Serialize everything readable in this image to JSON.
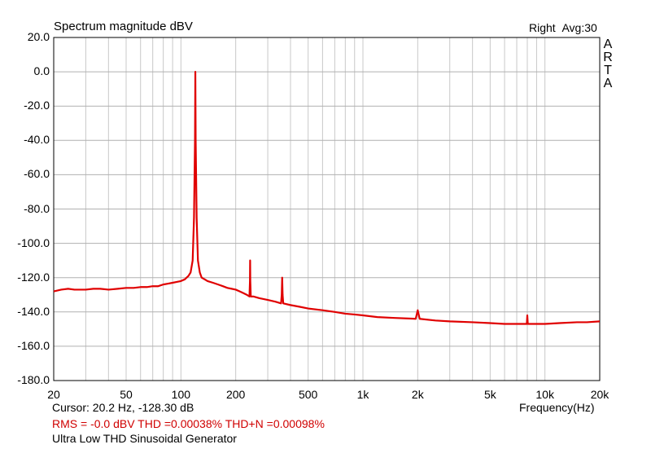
{
  "chart_data": {
    "type": "line",
    "title": "Spectrum magnitude dBV",
    "channel_label": "Right",
    "averages_label": "Avg:30",
    "brand_letters": [
      "A",
      "R",
      "T",
      "A"
    ],
    "xlabel": "Frequency(Hz)",
    "ylabel": "",
    "x_scale": "log",
    "xlim": [
      20,
      20000
    ],
    "ylim": [
      -180,
      20
    ],
    "grid": true,
    "x_ticks": [
      {
        "value": 20,
        "label": "20"
      },
      {
        "value": 50,
        "label": "50"
      },
      {
        "value": 100,
        "label": "100"
      },
      {
        "value": 200,
        "label": "200"
      },
      {
        "value": 500,
        "label": "500"
      },
      {
        "value": 1000,
        "label": "1k"
      },
      {
        "value": 2000,
        "label": "2k"
      },
      {
        "value": 5000,
        "label": "5k"
      },
      {
        "value": 10000,
        "label": "10k"
      },
      {
        "value": 20000,
        "label": "20k"
      }
    ],
    "y_ticks": [
      {
        "value": 20,
        "label": "20.0"
      },
      {
        "value": 0,
        "label": "0.0"
      },
      {
        "value": -20,
        "label": "-20.0"
      },
      {
        "value": -40,
        "label": "-40.0"
      },
      {
        "value": -60,
        "label": "-60.0"
      },
      {
        "value": -80,
        "label": "-80.0"
      },
      {
        "value": -100,
        "label": "-100.0"
      },
      {
        "value": -120,
        "label": "-120.0"
      },
      {
        "value": -140,
        "label": "-140.0"
      },
      {
        "value": -160,
        "label": "-160.0"
      },
      {
        "value": -180,
        "label": "-180.0"
      }
    ],
    "series": [
      {
        "color": "#e00000",
        "points": [
          [
            20,
            -128
          ],
          [
            22,
            -127
          ],
          [
            24,
            -126.5
          ],
          [
            26,
            -127
          ],
          [
            28,
            -127
          ],
          [
            30,
            -127
          ],
          [
            33,
            -126.5
          ],
          [
            36,
            -126.5
          ],
          [
            40,
            -127
          ],
          [
            45,
            -126.5
          ],
          [
            50,
            -126
          ],
          [
            55,
            -126
          ],
          [
            60,
            -125.5
          ],
          [
            65,
            -125.5
          ],
          [
            70,
            -125
          ],
          [
            75,
            -125
          ],
          [
            80,
            -124
          ],
          [
            85,
            -123.5
          ],
          [
            90,
            -123
          ],
          [
            95,
            -122.5
          ],
          [
            100,
            -122
          ],
          [
            105,
            -121
          ],
          [
            110,
            -119
          ],
          [
            113,
            -117
          ],
          [
            116,
            -110
          ],
          [
            118,
            -85
          ],
          [
            119.5,
            -40
          ],
          [
            120,
            0
          ],
          [
            120.5,
            -40
          ],
          [
            122,
            -85
          ],
          [
            124,
            -110
          ],
          [
            127,
            -117
          ],
          [
            130,
            -120
          ],
          [
            135,
            -121
          ],
          [
            140,
            -122
          ],
          [
            150,
            -123
          ],
          [
            160,
            -124
          ],
          [
            170,
            -125
          ],
          [
            180,
            -126
          ],
          [
            190,
            -126.5
          ],
          [
            200,
            -127
          ],
          [
            210,
            -128
          ],
          [
            220,
            -129
          ],
          [
            230,
            -130
          ],
          [
            238,
            -131
          ],
          [
            239.5,
            -122
          ],
          [
            240,
            -110
          ],
          [
            240.5,
            -122
          ],
          [
            242,
            -131
          ],
          [
            250,
            -131
          ],
          [
            270,
            -132
          ],
          [
            300,
            -133
          ],
          [
            330,
            -134
          ],
          [
            355,
            -135
          ],
          [
            358,
            -130
          ],
          [
            360,
            -120
          ],
          [
            362,
            -130
          ],
          [
            365,
            -135
          ],
          [
            400,
            -136
          ],
          [
            450,
            -137
          ],
          [
            500,
            -138
          ],
          [
            600,
            -139
          ],
          [
            700,
            -140
          ],
          [
            800,
            -141
          ],
          [
            900,
            -141.5
          ],
          [
            1000,
            -142
          ],
          [
            1200,
            -143
          ],
          [
            1500,
            -143.5
          ],
          [
            1950,
            -144
          ],
          [
            2000,
            -139
          ],
          [
            2050,
            -144
          ],
          [
            2500,
            -145
          ],
          [
            3000,
            -145.5
          ],
          [
            4000,
            -146
          ],
          [
            5000,
            -146.5
          ],
          [
            6000,
            -147
          ],
          [
            7000,
            -147
          ],
          [
            7950,
            -147
          ],
          [
            8000,
            -142
          ],
          [
            8050,
            -147
          ],
          [
            9000,
            -147
          ],
          [
            10000,
            -147
          ],
          [
            12000,
            -146.5
          ],
          [
            15000,
            -146
          ],
          [
            17000,
            -146
          ],
          [
            20000,
            -145.5
          ]
        ]
      }
    ]
  },
  "readouts": {
    "cursor": "Cursor:   20.2 Hz, -128.30 dB",
    "stats": "RMS =   -0.0 dBV   THD =0.00038%   THD+N =0.00098%",
    "caption": "Ultra Low THD Sinusoidal Generator"
  }
}
